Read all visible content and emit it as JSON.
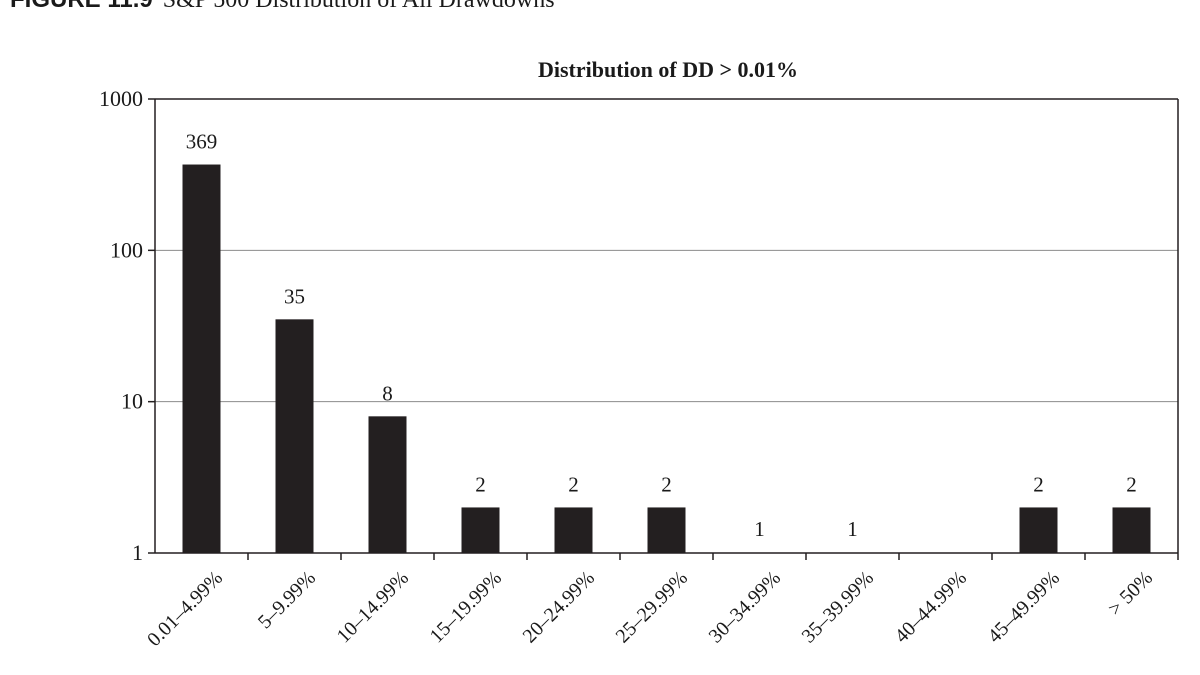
{
  "figure": {
    "number": "FIGURE 11.9",
    "caption": "S&P 500 Distribution of All Drawdowns"
  },
  "colors": {
    "bar": "#231f20",
    "axis": "#231f20",
    "grid": "#8c8c8c"
  },
  "chart_data": {
    "type": "bar",
    "title": "Distribution of DD > 0.01%",
    "xlabel": "",
    "ylabel": "",
    "yscale": "log",
    "ylim": [
      1,
      1000
    ],
    "yticks": [
      1,
      10,
      100,
      1000
    ],
    "ytick_labels": [
      "1",
      "10",
      "100",
      "1000"
    ],
    "grid": "horizontal",
    "categories": [
      "0.01–4.99%",
      "5–9.99%",
      "10–14.99%",
      "15–19.99%",
      "20–24.99%",
      "25–29.99%",
      "30–34.99%",
      "35–39.99%",
      "40–44.99%",
      "45–49.99%",
      "> 50%"
    ],
    "values": [
      369,
      35,
      8,
      2,
      2,
      2,
      1,
      1,
      null,
      2,
      2
    ],
    "data_labels": [
      "369",
      "35",
      "8",
      "2",
      "2",
      "2",
      "1",
      "1",
      "",
      "2",
      "2"
    ]
  }
}
